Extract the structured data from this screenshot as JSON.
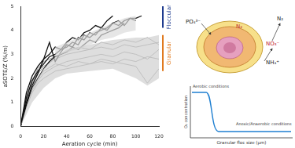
{
  "chart_data": {
    "type": "line",
    "x_label": "Aeration cycle (min)",
    "y_label": "aSOTE/Z (%/m)",
    "xlim": [
      0,
      120
    ],
    "xticks": [
      0,
      20,
      40,
      60,
      80,
      100,
      120
    ],
    "ylim": [
      0,
      5
    ],
    "yticks": [
      0,
      1,
      2,
      3,
      4,
      5
    ],
    "grid": false,
    "series": [
      {
        "color": "#111111",
        "x": [
          0,
          5,
          10,
          15,
          20,
          25,
          30,
          35,
          40,
          45,
          50,
          55,
          60,
          65,
          70,
          75,
          80,
          85,
          90,
          95,
          100,
          105
        ],
        "values": [
          0,
          1.2,
          1.9,
          2.3,
          2.6,
          2.9,
          3.0,
          3.2,
          3.3,
          3.5,
          3.4,
          3.8,
          3.7,
          3.9,
          4.0,
          4.1,
          4.3,
          4.2,
          4.4,
          4.5,
          4.5,
          4.6
        ]
      },
      {
        "color": "#111111",
        "x": [
          0,
          5,
          10,
          15,
          20,
          25,
          30,
          35,
          40,
          45,
          50,
          55,
          60,
          65,
          70,
          75,
          80,
          85,
          90,
          95,
          100
        ],
        "values": [
          0,
          1.0,
          1.7,
          2.2,
          2.8,
          3.5,
          2.7,
          3.1,
          3.4,
          3.3,
          3.7,
          3.6,
          3.9,
          3.8,
          4.1,
          4.0,
          4.3,
          4.4,
          4.2,
          4.5,
          4.4
        ]
      },
      {
        "color": "#111111",
        "x": [
          0,
          5,
          10,
          15,
          20,
          25,
          30,
          35,
          40,
          45,
          50,
          55,
          60,
          65,
          70,
          75,
          80
        ],
        "values": [
          0,
          1.4,
          2.1,
          2.5,
          2.8,
          3.0,
          3.3,
          3.2,
          3.5,
          3.7,
          3.6,
          3.9,
          4.0,
          4.2,
          4.1,
          4.4,
          4.6
        ]
      },
      {
        "color": "#111111",
        "x": [
          0,
          5,
          10,
          15,
          20,
          25,
          30,
          35,
          40,
          45,
          50,
          55,
          60,
          65,
          70,
          75,
          80,
          85,
          90
        ],
        "values": [
          0,
          0.9,
          1.6,
          2.0,
          2.4,
          2.7,
          2.9,
          3.0,
          3.1,
          3.3,
          3.2,
          3.4,
          3.6,
          3.5,
          3.8,
          3.9,
          4.0,
          4.1,
          4.3
        ]
      },
      {
        "color": "#8c8c8c",
        "x": [
          0,
          5,
          10,
          15,
          20,
          30,
          40,
          50,
          60,
          70,
          80,
          90,
          100,
          110,
          120
        ],
        "values": [
          0,
          1.1,
          1.8,
          2.2,
          2.5,
          2.8,
          3.0,
          3.1,
          3.2,
          3.3,
          3.2,
          3.4,
          3.3,
          3.4,
          3.5
        ]
      },
      {
        "color": "#8c8c8c",
        "x": [
          0,
          5,
          10,
          15,
          20,
          30,
          40,
          50,
          60,
          70,
          80,
          90,
          100,
          110,
          120
        ],
        "values": [
          0,
          0.9,
          1.5,
          1.9,
          2.2,
          2.5,
          2.7,
          2.8,
          2.9,
          3.0,
          2.9,
          3.1,
          3.0,
          2.8,
          3.2
        ]
      },
      {
        "color": "#8c8c8c",
        "x": [
          0,
          5,
          10,
          15,
          20,
          30,
          40,
          50,
          60,
          70,
          80,
          90,
          100,
          110,
          120
        ],
        "values": [
          0,
          1.0,
          1.6,
          2.0,
          2.3,
          2.6,
          2.5,
          2.7,
          2.6,
          2.8,
          2.7,
          2.6,
          2.5,
          1.8,
          2.4
        ]
      },
      {
        "color": "#8c8c8c",
        "x": [
          0,
          5,
          10,
          15,
          20,
          30,
          40,
          50,
          60,
          70,
          80,
          90,
          100,
          110,
          120
        ],
        "values": [
          0,
          1.2,
          1.9,
          2.4,
          2.7,
          2.9,
          3.1,
          3.3,
          3.2,
          3.5,
          3.4,
          3.6,
          3.5,
          3.7,
          3.4
        ]
      },
      {
        "color": "#8c8c8c",
        "x": [
          0,
          5,
          10,
          15,
          20,
          30,
          40,
          50,
          60,
          70,
          80,
          90,
          100,
          110,
          120
        ],
        "values": [
          0,
          0.8,
          1.4,
          1.8,
          2.0,
          2.3,
          2.4,
          2.5,
          2.6,
          2.7,
          2.6,
          2.8,
          2.7,
          2.9,
          2.8
        ]
      }
    ],
    "bands": [
      {
        "color": "#d0d0d0",
        "x": [
          0,
          10,
          20,
          30,
          40,
          60,
          80,
          100,
          110,
          120
        ],
        "lower": [
          0,
          1.0,
          1.6,
          2.0,
          2.2,
          2.3,
          2.4,
          2.0,
          1.7,
          2.0
        ],
        "upper": [
          0,
          1.6,
          2.4,
          2.9,
          3.2,
          3.4,
          3.6,
          3.7,
          3.7,
          3.8
        ]
      },
      {
        "color": "#dcdcdc",
        "x": [
          30,
          40,
          50,
          60,
          70,
          80,
          90,
          100
        ],
        "lower": [
          2.9,
          3.1,
          3.2,
          3.4,
          3.6,
          3.7,
          3.9,
          4.0
        ],
        "upper": [
          3.3,
          3.5,
          3.7,
          3.9,
          4.1,
          4.3,
          4.5,
          4.6
        ]
      }
    ],
    "annotations": [
      {
        "text": "Floccular",
        "color": "#1f3c8f",
        "y_range": [
          4.1,
          5.0
        ]
      },
      {
        "text": "Granular",
        "color": "#e07a1f",
        "y_range": [
          2.3,
          3.8
        ]
      }
    ]
  },
  "diagram": {
    "species": {
      "phosphate": "PO₄³⁻",
      "nitrogen_gas_inner": "N₂",
      "nitrogen_gas_outer": "N₂",
      "nitrate": "NO₃⁻",
      "ammonium": "NH₄⁺"
    },
    "profile": {
      "y_label": "O₂ concentration",
      "x_label": "Granular floc size (µm)",
      "aerobic": "Aerobic conditions",
      "anoxic": "Anoxic/Anaerobic conditions"
    }
  }
}
